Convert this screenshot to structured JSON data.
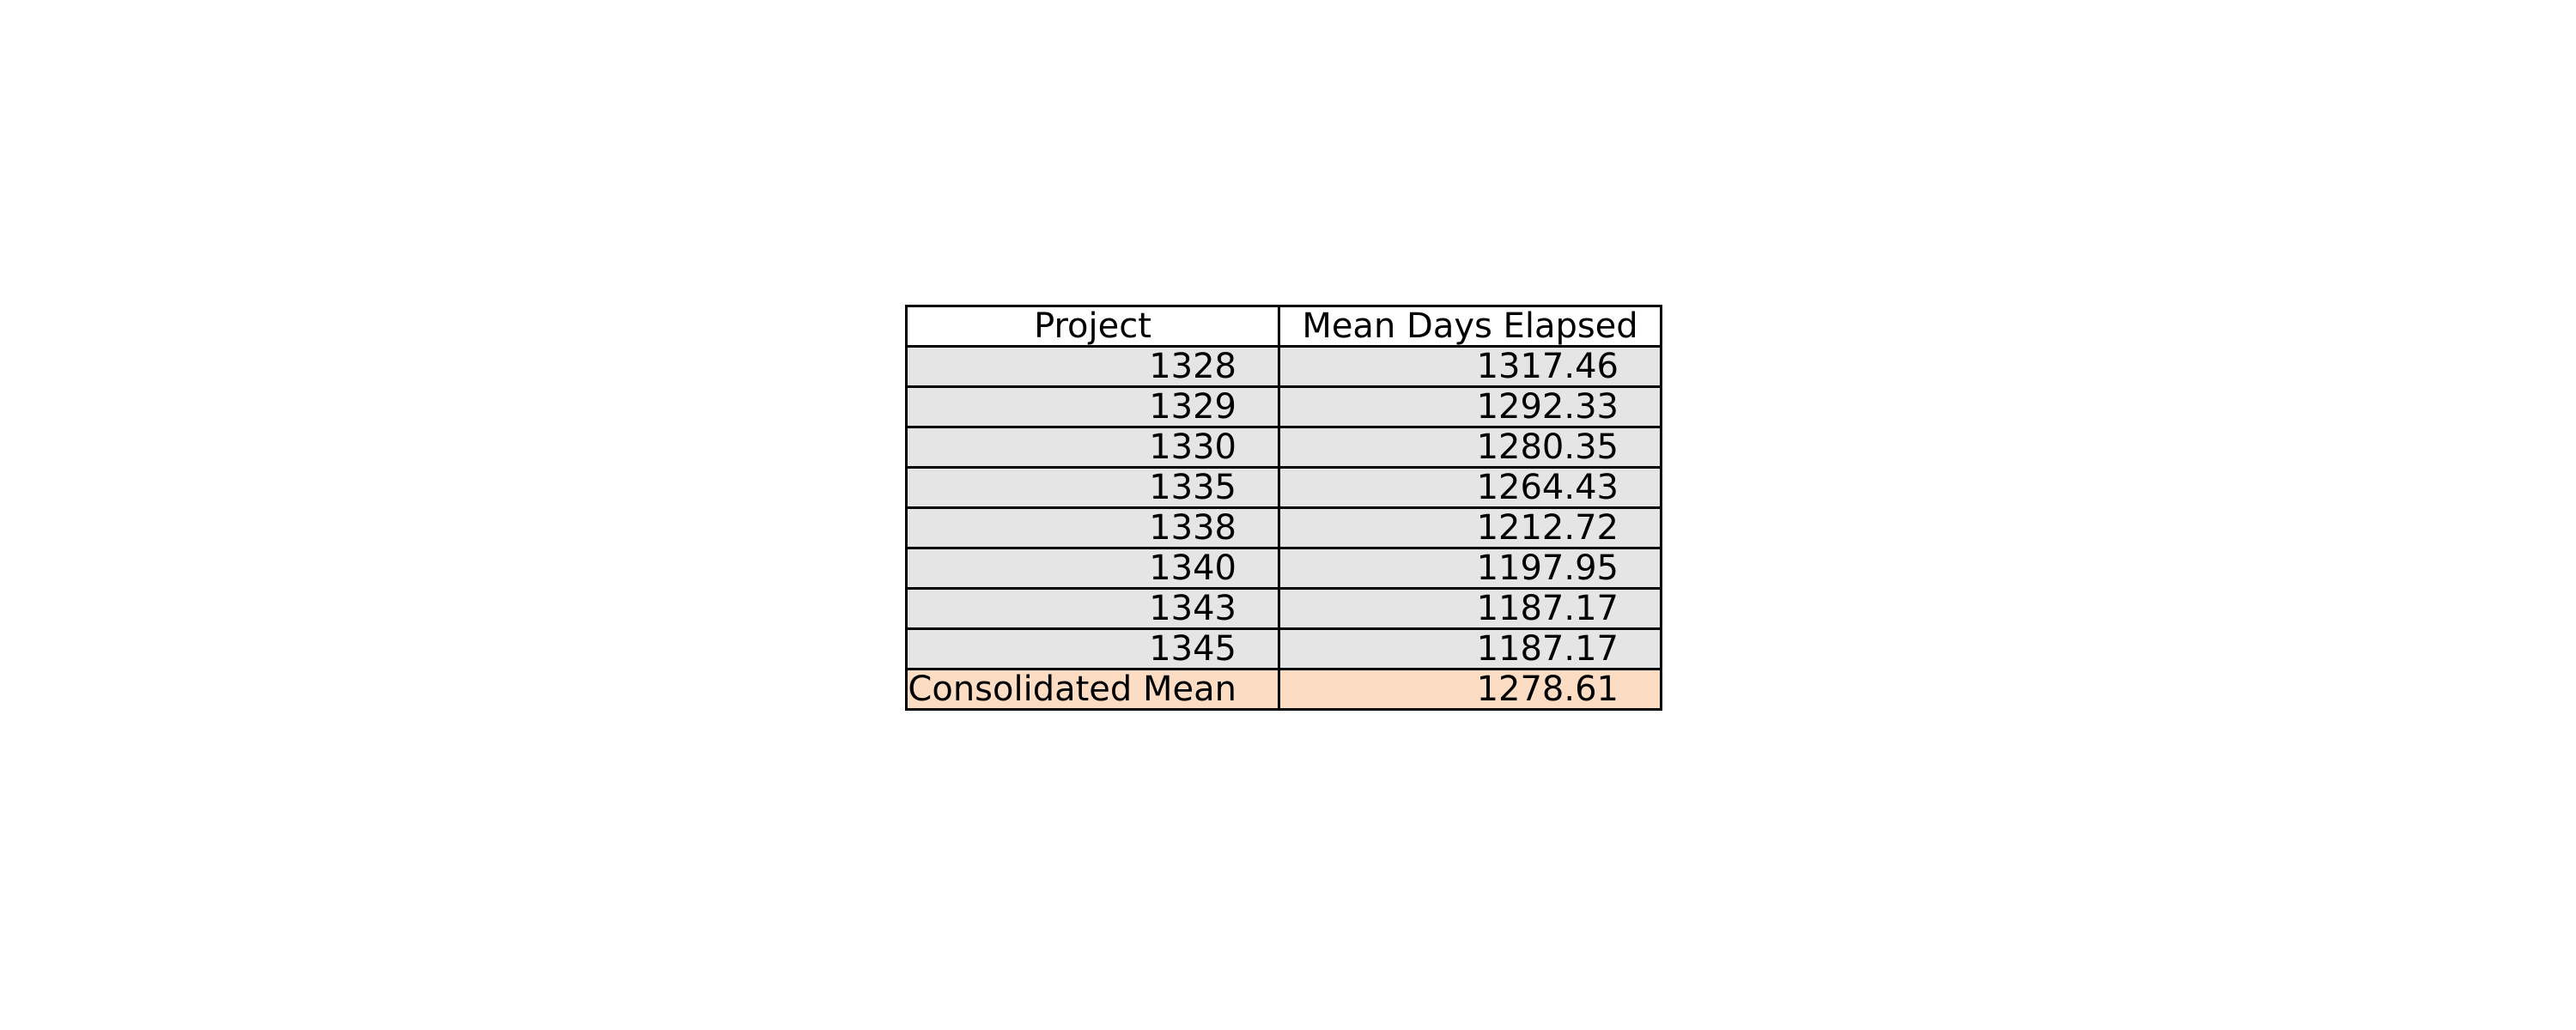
{
  "chart_data": {
    "type": "table",
    "columns": [
      "Project",
      "Mean Days Elapsed"
    ],
    "rows": [
      [
        "1328",
        "1317.46"
      ],
      [
        "1329",
        "1292.33"
      ],
      [
        "1330",
        "1280.35"
      ],
      [
        "1335",
        "1264.43"
      ],
      [
        "1338",
        "1212.72"
      ],
      [
        "1340",
        "1197.95"
      ],
      [
        "1343",
        "1187.17"
      ],
      [
        "1345",
        "1187.17"
      ]
    ],
    "summary_row": [
      "Consolidated Mean",
      "1278.61"
    ],
    "colors": {
      "header_bg": "#ffffff",
      "row_bg": "#e5e5e5",
      "summary_bg": "#fddcc4",
      "border": "#000000"
    }
  }
}
